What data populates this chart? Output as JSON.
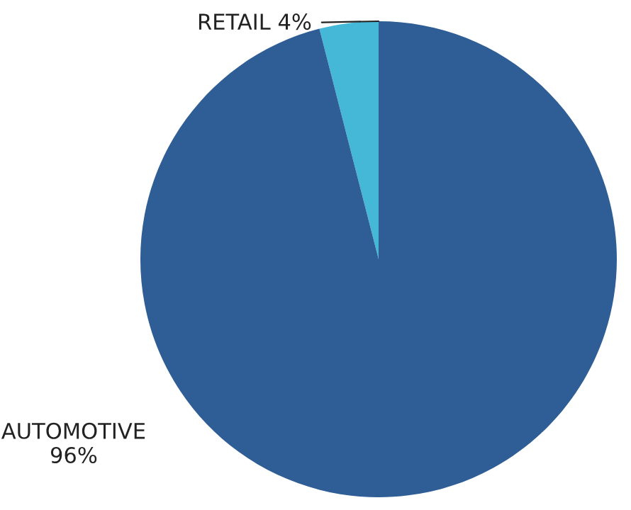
{
  "chart_data": {
    "type": "pie",
    "categories": [
      "RETAIL",
      "AUTOMOTIVE"
    ],
    "values": [
      4,
      96
    ],
    "value_labels": [
      "4%",
      "96%"
    ],
    "colors": [
      "#45b8d8",
      "#2e5e95"
    ]
  }
}
